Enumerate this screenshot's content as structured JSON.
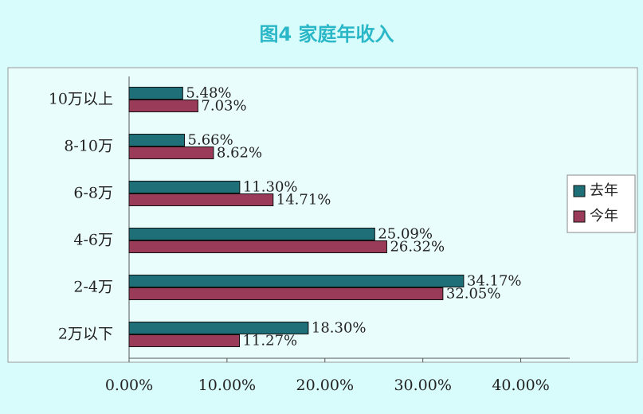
{
  "chart_data": {
    "type": "hbar",
    "title": "图4 家庭年收入",
    "categories": [
      "10万以上",
      "8-10万",
      "6-8万",
      "4-6万",
      "2-4万",
      "2万以下"
    ],
    "series": [
      {
        "name": "去年",
        "color": "#1f6f78",
        "values": [
          5.48,
          5.66,
          11.3,
          25.09,
          34.17,
          18.3
        ],
        "value_labels": [
          "5.48%",
          "5.66%",
          "11.30%",
          "25.09%",
          "34.17%",
          "18.30%"
        ]
      },
      {
        "name": "今年",
        "color": "#9b3b5a",
        "values": [
          7.03,
          8.62,
          14.71,
          26.32,
          32.05,
          11.27
        ],
        "value_labels": [
          "7.03%",
          "8.62%",
          "14.71%",
          "26.32%",
          "32.05%",
          "11.27%"
        ]
      }
    ],
    "xlim": [
      0,
      45
    ],
    "xticks": [
      {
        "value": 0,
        "label": "0.00%"
      },
      {
        "value": 10,
        "label": "10.00%"
      },
      {
        "value": 20,
        "label": "20.00%"
      },
      {
        "value": 30,
        "label": "30.00%"
      },
      {
        "value": 40,
        "label": "40.00%"
      }
    ],
    "legend": "right"
  }
}
